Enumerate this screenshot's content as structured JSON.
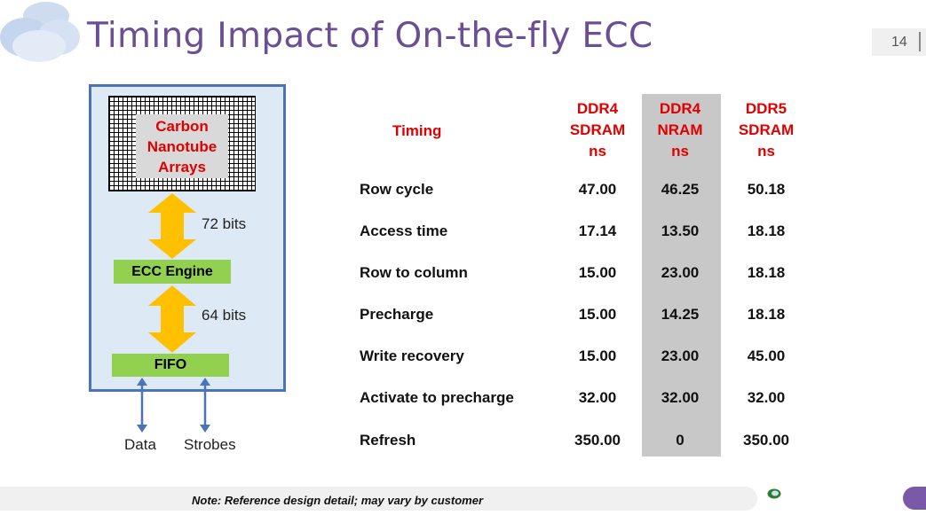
{
  "slide": {
    "title": "Timing Impact of On-the-fly ECC",
    "page_number": "14",
    "note": "Note: Reference design detail; may vary by customer"
  },
  "diagram": {
    "array_label": "Carbon Nanotube Arrays",
    "top_bus": "72 bits",
    "ecc_label": "ECC Engine",
    "bottom_bus": "64 bits",
    "fifo_label": "FIFO",
    "data_label": "Data",
    "strobes_label": "Strobes"
  },
  "table": {
    "timing_header": "Timing",
    "columns": [
      {
        "label": "DDR4\nSDRAM\nns",
        "highlighted": false
      },
      {
        "label": "DDR4\nNRAM\nns",
        "highlighted": true
      },
      {
        "label": "DDR5\nSDRAM\nns",
        "highlighted": false
      }
    ],
    "rows": [
      {
        "label": "Row cycle",
        "values": [
          "47.00",
          "46.25",
          "50.18"
        ]
      },
      {
        "label": "Access time",
        "values": [
          "17.14",
          "13.50",
          "18.18"
        ]
      },
      {
        "label": "Row to column",
        "values": [
          "15.00",
          "23.00",
          "18.18"
        ]
      },
      {
        "label": "Precharge",
        "values": [
          "15.00",
          "14.25",
          "18.18"
        ]
      },
      {
        "label": "Write recovery",
        "values": [
          "15.00",
          "23.00",
          "45.00"
        ]
      },
      {
        "label": "Activate to precharge",
        "values": [
          "32.00",
          "32.00",
          "32.00"
        ]
      },
      {
        "label": "Refresh",
        "values": [
          "350.00",
          "0",
          "350.00"
        ]
      }
    ]
  },
  "colors": {
    "title": "#6a4f95",
    "header_red": "#e00000",
    "green": "#92d050",
    "arrow_gold": "#ffc000",
    "box_border": "#4a73b8"
  }
}
